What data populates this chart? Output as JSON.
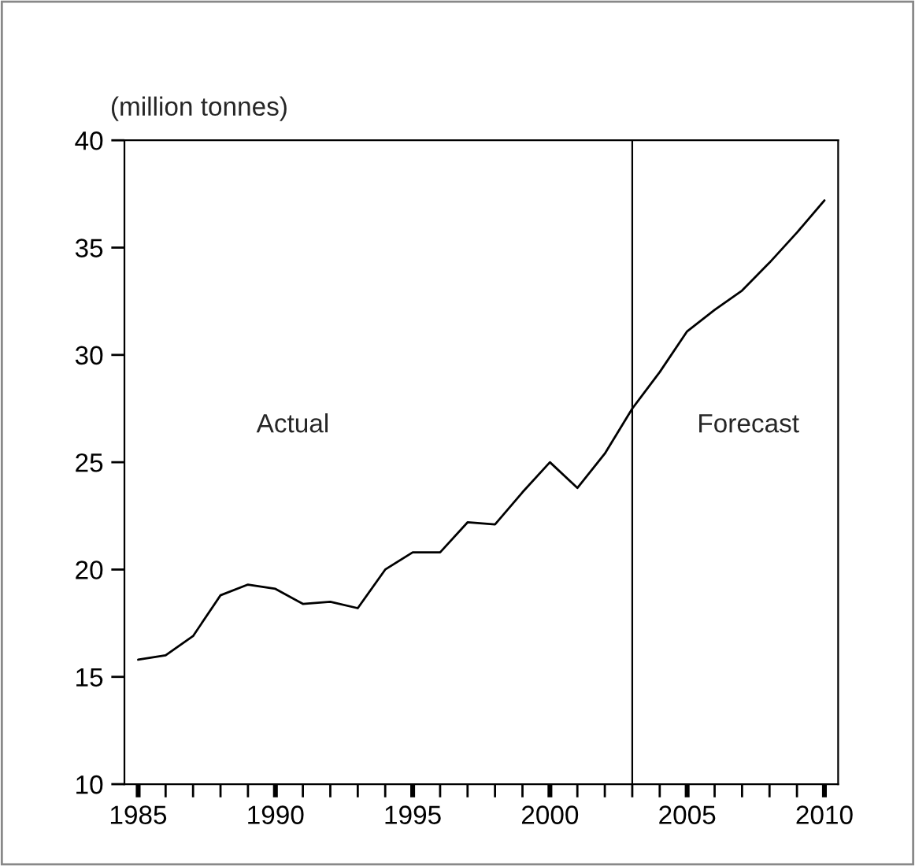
{
  "chart_data": {
    "type": "line",
    "ylabel": "(million tonnes)",
    "x": [
      1985,
      1986,
      1987,
      1988,
      1989,
      1990,
      1991,
      1992,
      1993,
      1994,
      1995,
      1996,
      1997,
      1998,
      1999,
      2000,
      2001,
      2002,
      2003,
      2004,
      2005,
      2006,
      2007,
      2008,
      2009,
      2010
    ],
    "series": [
      {
        "color": "#000000",
        "values": [
          15.8,
          16.0,
          16.9,
          18.8,
          19.3,
          19.1,
          18.4,
          18.5,
          18.2,
          20.0,
          20.8,
          20.8,
          22.2,
          22.1,
          23.6,
          25.0,
          23.8,
          25.4,
          27.5,
          29.2,
          31.1,
          32.1,
          33.0,
          34.3,
          35.7,
          37.2
        ]
      }
    ],
    "xlim": [
      1984.5,
      2010.5
    ],
    "xticks": [
      1985,
      {
        "value": 1986,
        "label": null
      },
      {
        "value": 1987,
        "label": null
      },
      {
        "value": 1988,
        "label": null
      },
      {
        "value": 1989,
        "label": null
      },
      1990,
      {
        "value": 1991,
        "label": null
      },
      {
        "value": 1992,
        "label": null
      },
      {
        "value": 1993,
        "label": null
      },
      {
        "value": 1994,
        "label": null
      },
      1995,
      {
        "value": 1996,
        "label": null
      },
      {
        "value": 1997,
        "label": null
      },
      {
        "value": 1998,
        "label": null
      },
      {
        "value": 1999,
        "label": null
      },
      2000,
      {
        "value": 2001,
        "label": null
      },
      {
        "value": 2002,
        "label": null
      },
      {
        "value": 2003,
        "label": null
      },
      {
        "value": 2004,
        "label": null
      },
      2005,
      {
        "value": 2006,
        "label": null
      },
      {
        "value": 2007,
        "label": null
      },
      {
        "value": 2008,
        "label": null
      },
      {
        "value": 2009,
        "label": null
      },
      2010
    ],
    "ylim": [
      10,
      40
    ],
    "yticks": [
      10,
      15,
      20,
      25,
      30,
      35,
      40
    ],
    "ref_lines": [
      {
        "axis": "x",
        "value": 2003,
        "color": "#000000"
      }
    ],
    "annotations": [
      "Actual",
      "Forecast"
    ],
    "grid": false,
    "marker": "none",
    "line_style": "solid"
  }
}
